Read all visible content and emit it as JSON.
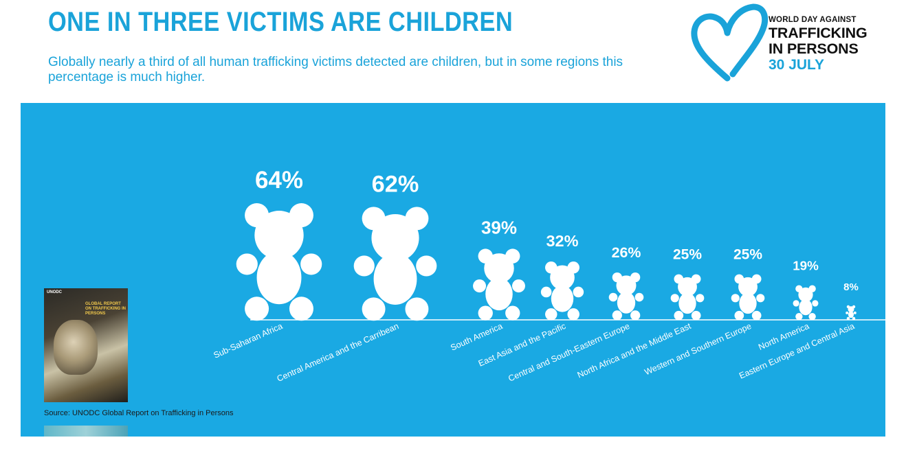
{
  "header": {
    "title": "ONE IN THREE VICTIMS ARE CHILDREN",
    "subtitle": "Globally nearly a third of all human trafficking victims detected are children, but in some regions this percentage is much higher."
  },
  "logo": {
    "line1": "WORLD DAY AGAINST",
    "line2": "TRAFFICKING",
    "line3": "IN PERSONS",
    "date": "30 JULY"
  },
  "report_cover": {
    "org": "UNODC",
    "title": "GLOBAL REPORT ON TRAFFICKING IN PERSONS"
  },
  "source": "Source: UNODC Global Report on Trafficking in Persons",
  "colors": {
    "accent": "#1aa3d9",
    "panel": "#1aa9e3",
    "mark": "#ffffff",
    "text_dark": "#111111"
  },
  "chart_data": {
    "type": "bar",
    "mark_icon": "teddy-bear-icon",
    "categories": [
      "Sub-Saharan Africa",
      "Central America and the Carribean",
      "South America",
      "East Asia and the Pacific",
      "Central and South-Eastern Europe",
      "North Africa and the Middle East",
      "Western and Southern Europe",
      "North America",
      "Eastern Europe and Central Asia"
    ],
    "values": [
      64,
      62,
      39,
      32,
      26,
      25,
      25,
      19,
      8
    ],
    "value_labels": [
      "64%",
      "62%",
      "39%",
      "32%",
      "26%",
      "25%",
      "25%",
      "19%",
      "8%"
    ],
    "unit": "%",
    "grid": false,
    "legend": "none"
  }
}
